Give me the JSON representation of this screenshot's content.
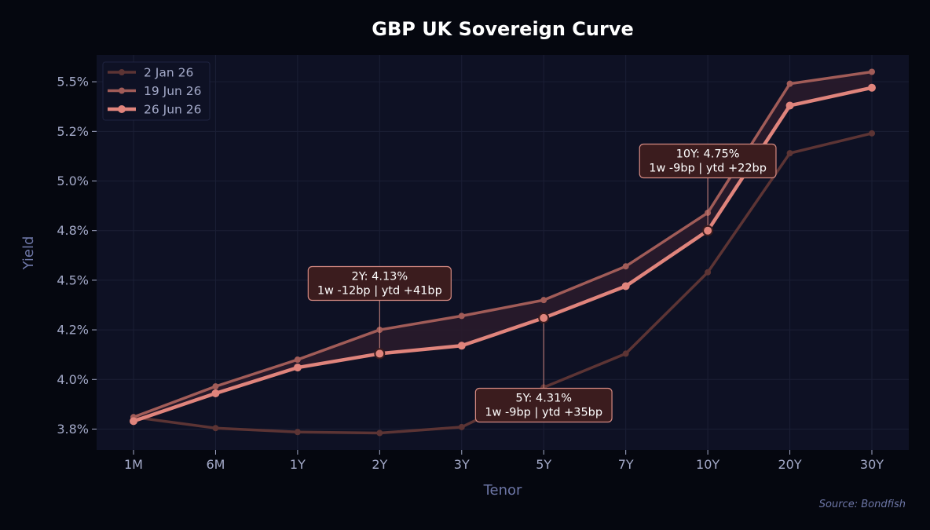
{
  "chart_data": {
    "type": "line",
    "title": "GBP UK Sovereign Curve",
    "xlabel": "Tenor",
    "ylabel": "Yield",
    "categories": [
      "1M",
      "6M",
      "1Y",
      "2Y",
      "3Y",
      "5Y",
      "7Y",
      "10Y",
      "20Y",
      "30Y"
    ],
    "yticks": [
      3.75,
      4.0,
      4.25,
      4.5,
      4.75,
      5.0,
      5.25,
      5.5
    ],
    "ytick_labels": [
      "3.8%",
      "4.0%",
      "4.2%",
      "4.5%",
      "4.8%",
      "5.0%",
      "5.2%",
      "5.5%"
    ],
    "ylim": [
      3.645,
      5.635
    ],
    "grid": true,
    "legend_position": "top-left",
    "series": [
      {
        "name": "2 Jan 26",
        "color": "#5c3434",
        "values": [
          3.81,
          3.755,
          3.735,
          3.73,
          3.76,
          3.96,
          4.13,
          4.54,
          5.14,
          5.24
        ]
      },
      {
        "name": "19 Jun 26",
        "color": "#a15c58",
        "values": [
          3.81,
          3.965,
          4.1,
          4.25,
          4.32,
          4.4,
          4.57,
          4.84,
          5.49,
          5.55
        ]
      },
      {
        "name": "26 Jun 26",
        "color": "#e0847c",
        "values": [
          3.79,
          3.93,
          4.06,
          4.13,
          4.17,
          4.31,
          4.47,
          4.75,
          5.38,
          5.47
        ]
      }
    ],
    "annotations": [
      {
        "category": "2Y",
        "line1": "2Y: 4.13%",
        "line2": "1w -12bp | ytd +41bp"
      },
      {
        "category": "5Y",
        "line1": "5Y: 4.31%",
        "line2": "1w -9bp | ytd +35bp"
      },
      {
        "category": "10Y",
        "line1": "10Y: 4.75%",
        "line2": "1w -9bp | ytd +22bp"
      }
    ],
    "source": "Source: Bondfish"
  },
  "colors": {
    "page_bg": "#05070f",
    "plot_bg": "#0e1124",
    "grid": "#1b1f35",
    "tick_text": "#a3a9c8",
    "axis_label": "#6d76a6",
    "title": "#ffffff",
    "band_fill": "#2a1b2b",
    "annotation_bg": "#3b1c1e",
    "annotation_border": "#d58a82"
  }
}
